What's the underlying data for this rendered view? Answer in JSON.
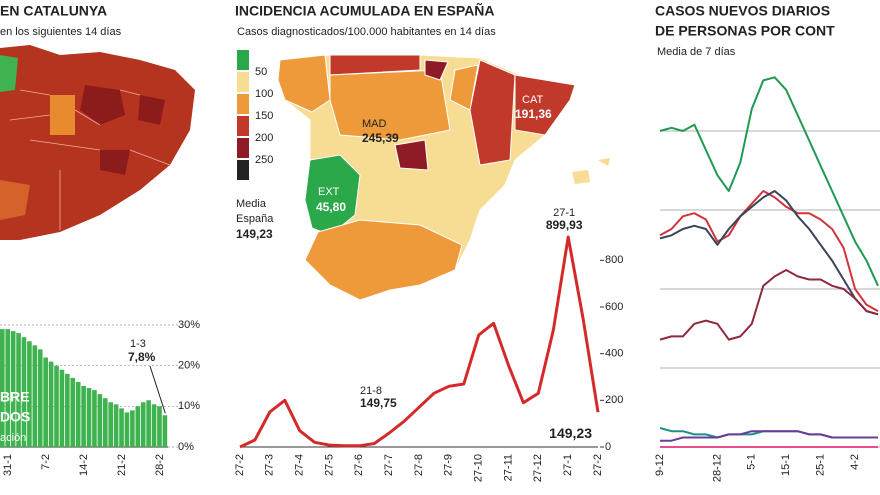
{
  "chart_data": [
    {
      "type": "bar",
      "title": "EN CATALUNYA",
      "subtitle": "en los siguientes 14 días",
      "categories": [
        null,
        "31-1",
        null,
        null,
        null,
        null,
        null,
        null,
        "7-2",
        null,
        null,
        null,
        null,
        null,
        null,
        "14-2",
        null,
        null,
        null,
        null,
        null,
        null,
        "21-2",
        null,
        null,
        null,
        null,
        null,
        null,
        "28-2",
        null
      ],
      "values": [
        29,
        29,
        28.5,
        28,
        27,
        26,
        25,
        24,
        22,
        21,
        20,
        19,
        18,
        17,
        16,
        15,
        14.5,
        14,
        13,
        12,
        11,
        10.5,
        9.5,
        8.5,
        9,
        10,
        11,
        11.5,
        10.5,
        10,
        7.8
      ],
      "value_labels": [
        null,
        null,
        null,
        null,
        null,
        null,
        null,
        null,
        null,
        null,
        null,
        null,
        null,
        null,
        null,
        null,
        null,
        null,
        null,
        null,
        null,
        null,
        null,
        null,
        null,
        null,
        null,
        null,
        null,
        null,
        "7,8%"
      ],
      "callout_date": "1-3",
      "color": "#3fb34f",
      "ylim": [
        0,
        30
      ],
      "yticks": [
        {
          "value": 0,
          "label": "0%"
        },
        {
          "value": 10,
          "label": "10%"
        },
        {
          "value": 20,
          "label": "20%"
        },
        {
          "value": 30,
          "label": "30%"
        }
      ],
      "grid": true,
      "annotations": [
        "BRE",
        "DOS",
        "ación"
      ]
    },
    {
      "type": "line",
      "title": "INCIDENCIA ACUMULADA EN ESPAÑA",
      "subtitle": "Casos diagnosticados/100.000 habitantes en 14 días",
      "categories": [
        "27-2",
        null,
        "27-3",
        null,
        "27-4",
        null,
        "27-5",
        null,
        "27-6",
        null,
        "27-7",
        null,
        "27-8",
        null,
        "27-9",
        null,
        "27-10",
        null,
        "27-11",
        null,
        "27-12",
        null,
        "27-1",
        null,
        "27-2"
      ],
      "series": [
        {
          "color": "#d42a2a",
          "values": [
            0,
            30,
            150,
            200,
            70,
            20,
            8,
            5,
            5,
            15,
            60,
            110,
            170,
            230,
            260,
            270,
            480,
            530,
            350,
            190,
            230,
            500,
            899.93,
            550,
            149.23
          ],
          "value_labels": [
            null,
            null,
            null,
            null,
            null,
            null,
            null,
            null,
            null,
            null,
            null,
            null,
            null,
            null,
            null,
            null,
            null,
            null,
            null,
            null,
            null,
            null,
            "899,93",
            null,
            "149,23"
          ]
        }
      ],
      "ylim": [
        0,
        900
      ],
      "yticks": [
        0,
        200,
        400,
        600,
        800
      ],
      "grid": false,
      "annotations": [
        {
          "date": "21-8",
          "value": 149.75,
          "label": "149,75"
        }
      ]
    },
    {
      "type": "line",
      "title": [
        "CASOS NUEVOS DIARIOS",
        "DE PERSONAS POR CONT"
      ],
      "subtitle": "Media de 7 días",
      "categories": [
        "9-12",
        null,
        null,
        null,
        null,
        "28-12",
        null,
        null,
        "5-1",
        null,
        null,
        "15-1",
        null,
        null,
        "25-1",
        null,
        null,
        "4-2",
        null,
        null
      ],
      "series": [
        {
          "color": "#1e9a52",
          "values": [
            100,
            101,
            100,
            102,
            94,
            86,
            81,
            90,
            107,
            116,
            117,
            113,
            105,
            97,
            89,
            81,
            73,
            65,
            59,
            51
          ]
        },
        {
          "color": "#d0343a",
          "values": [
            67,
            69,
            73,
            74,
            72,
            65,
            67,
            73,
            77,
            81,
            79,
            76,
            74,
            74,
            72,
            69,
            63,
            50,
            45,
            43
          ]
        },
        {
          "color": "#3b4458",
          "values": [
            66,
            67,
            69,
            70,
            69,
            64,
            69,
            73,
            76,
            79,
            81,
            78,
            73,
            69,
            64,
            59,
            53,
            47,
            43,
            42
          ]
        },
        {
          "color": "#8e2a3e",
          "values": [
            34,
            35,
            35,
            39,
            40,
            39,
            34,
            35,
            39,
            51,
            54,
            56,
            54,
            53,
            53,
            51,
            50,
            47,
            43,
            42
          ]
        },
        {
          "color": "#1f8f8a",
          "values": [
            6,
            5,
            5,
            4,
            4,
            3,
            4,
            4,
            4,
            5,
            5,
            5,
            5,
            4,
            4,
            3,
            3,
            3,
            3,
            3
          ]
        },
        {
          "color": "#6a3d9a",
          "values": [
            2,
            2,
            3,
            3,
            3,
            3,
            4,
            4,
            5,
            5,
            5,
            5,
            5,
            4,
            4,
            3,
            3,
            3,
            3,
            3
          ]
        },
        {
          "color": "#e84c8a",
          "values": [
            0,
            0,
            0,
            0,
            0,
            0,
            0,
            0,
            0,
            0,
            0,
            0,
            0,
            0,
            0,
            0,
            0,
            0,
            0,
            0
          ]
        }
      ],
      "ylim": [
        0,
        125
      ],
      "yticks": [
        0,
        25,
        50,
        75,
        100
      ],
      "grid": true
    }
  ],
  "map": {
    "legend": {
      "colors": [
        "#2aa84a",
        "#f7dc94",
        "#ee9a3a",
        "#c0392b",
        "#8e1b26",
        "#222222"
      ],
      "labels": [
        50,
        100,
        150,
        200,
        250
      ]
    },
    "labels": [
      {
        "name": "MAD",
        "value": "245,39"
      },
      {
        "name": "CAT",
        "value": "191,36"
      },
      {
        "name": "EXT",
        "value": "45,80"
      }
    ],
    "average": {
      "lines": [
        "Media",
        "España"
      ],
      "value": "149,23"
    }
  }
}
